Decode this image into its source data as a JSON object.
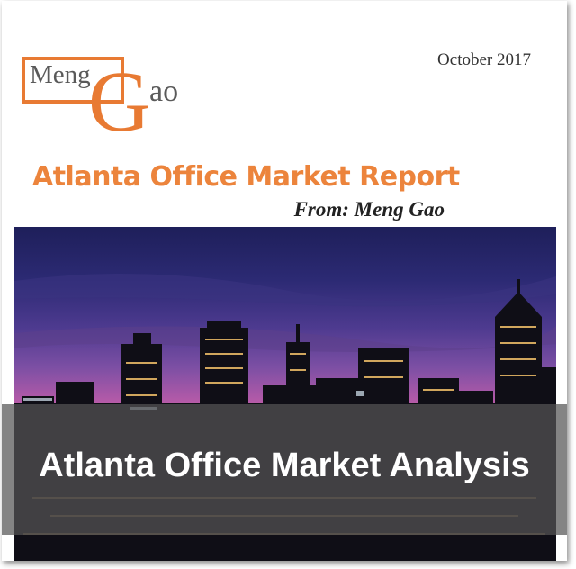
{
  "document": {
    "date": "October 2017",
    "logo": {
      "first": "Meng",
      "initial": "G",
      "rest": "ao"
    },
    "title": "Atlanta Office Market Report",
    "author_line": "From: Meng Gao",
    "photo_icon": "atlanta-skyline-photo",
    "banner_text": "Atlanta Office Market Analysis"
  },
  "colors": {
    "accent_orange": "#e87a33",
    "logo_gray": "#5a5a5a",
    "overlay": "#555555"
  }
}
